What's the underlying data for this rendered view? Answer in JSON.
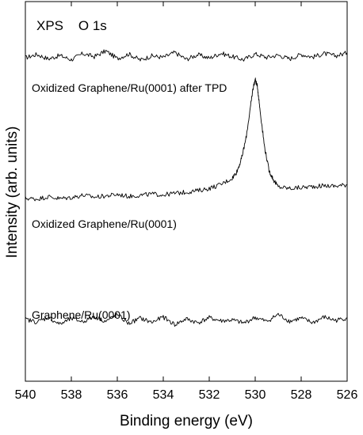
{
  "chart_data": {
    "type": "line",
    "title": "XPS    O 1s",
    "xlabel": "Binding energy (eV)",
    "ylabel": "Intensity (arb. units)",
    "xlim": [
      540,
      526
    ],
    "x_reversed": true,
    "x_ticks": [
      "540",
      "538",
      "536",
      "534",
      "532",
      "530",
      "528",
      "526"
    ],
    "y_ticks_shown": false,
    "grid": false,
    "legend": "none",
    "series": [
      {
        "name": "Oxidized Graphene/Ru(0001) after TPD",
        "color": "#000000",
        "x": [
          540.0,
          539.5,
          539.0,
          538.5,
          538.0,
          537.5,
          537.0,
          536.5,
          536.0,
          535.5,
          535.0,
          534.5,
          534.0,
          533.5,
          533.0,
          532.5,
          532.0,
          531.5,
          531.0,
          530.5,
          530.0,
          529.5,
          529.0,
          528.5,
          528.0,
          527.5,
          527.0,
          526.5,
          526.0
        ],
        "y": [
          8.52,
          8.61,
          8.49,
          8.58,
          8.47,
          8.63,
          8.55,
          8.7,
          8.5,
          8.62,
          8.46,
          8.57,
          8.53,
          8.66,
          8.48,
          8.6,
          8.51,
          8.64,
          8.55,
          8.47,
          8.62,
          8.53,
          8.59,
          8.49,
          8.61,
          8.54,
          8.63,
          8.57,
          8.65
        ]
      },
      {
        "name": "Oxidized Graphene/Ru(0001)",
        "color": "#000000",
        "x": [
          540.0,
          539.5,
          539.0,
          538.5,
          538.0,
          537.5,
          537.0,
          536.5,
          536.0,
          535.5,
          535.0,
          534.5,
          534.0,
          533.5,
          533.0,
          532.5,
          532.0,
          531.5,
          531.0,
          530.8,
          530.6,
          530.4,
          530.2,
          530.1,
          530.0,
          529.9,
          529.8,
          529.6,
          529.4,
          529.2,
          529.0,
          528.5,
          528.0,
          527.5,
          527.0,
          526.5,
          526.0
        ],
        "y": [
          4.82,
          4.8,
          4.86,
          4.81,
          4.84,
          4.9,
          4.85,
          4.88,
          4.92,
          4.87,
          4.9,
          4.93,
          4.91,
          4.95,
          4.98,
          5.02,
          5.08,
          5.18,
          5.35,
          5.52,
          5.85,
          6.4,
          7.25,
          7.7,
          7.95,
          7.75,
          7.2,
          6.2,
          5.55,
          5.3,
          5.12,
          5.08,
          5.1,
          5.13,
          5.15,
          5.14,
          5.18
        ]
      },
      {
        "name": "Graphene/Ru(0001)",
        "color": "#000000",
        "x": [
          540.0,
          539.5,
          539.0,
          538.5,
          538.0,
          537.5,
          537.0,
          536.5,
          536.0,
          535.5,
          535.0,
          534.5,
          534.0,
          533.5,
          533.0,
          532.5,
          532.0,
          531.5,
          531.0,
          530.5,
          530.0,
          529.5,
          529.0,
          528.5,
          528.0,
          527.5,
          527.0,
          526.5,
          526.0
        ],
        "y": [
          1.63,
          1.56,
          1.68,
          1.5,
          1.65,
          1.57,
          1.7,
          1.58,
          1.75,
          1.52,
          1.66,
          1.55,
          1.69,
          1.49,
          1.64,
          1.54,
          1.67,
          1.59,
          1.61,
          1.53,
          1.68,
          1.57,
          1.76,
          1.58,
          1.66,
          1.54,
          1.69,
          1.6,
          1.67
        ]
      }
    ]
  }
}
